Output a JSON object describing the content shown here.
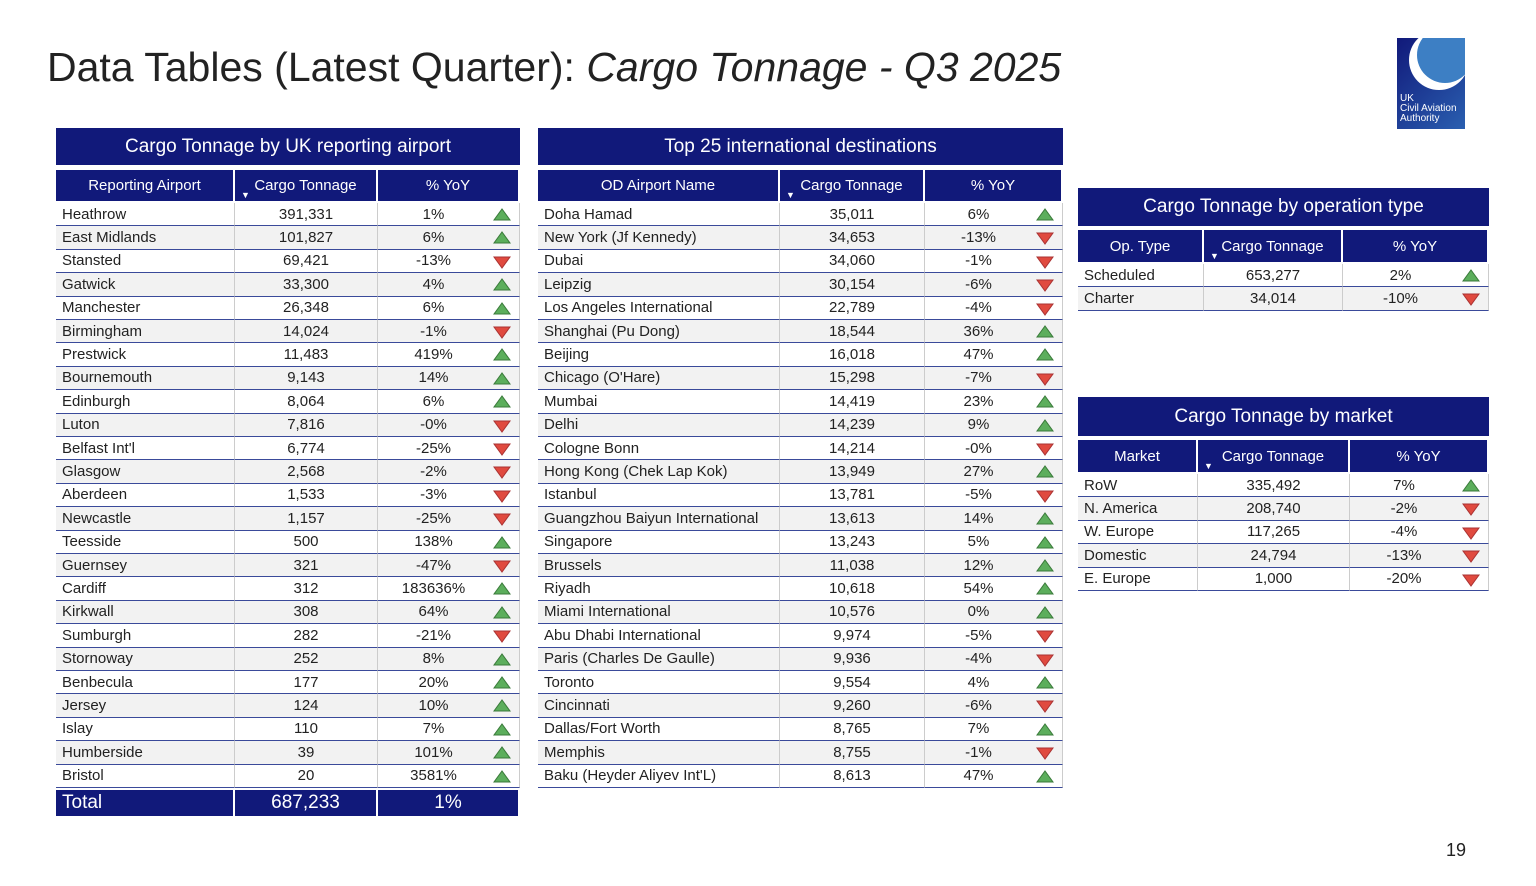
{
  "header": {
    "title": "Data Tables (Latest Quarter): ",
    "title_italic": "Cargo Tonnage - Q3 2025",
    "logo_text": [
      "UK",
      "Civil Aviation",
      "Authority"
    ]
  },
  "tables": [
    {
      "title": "Cargo Tonnage by UK reporting airport",
      "columns": [
        "Reporting Airport",
        "Cargo Tonnage",
        "% YoY"
      ],
      "rows": [
        [
          "Heathrow",
          "391,331",
          "1%"
        ],
        [
          "East Midlands",
          "101,827",
          "6%"
        ],
        [
          "Stansted",
          "69,421",
          "-13%"
        ],
        [
          "Gatwick",
          "33,300",
          "4%"
        ],
        [
          "Manchester",
          "26,348",
          "6%"
        ],
        [
          "Birmingham",
          "14,024",
          "-1%"
        ],
        [
          "Prestwick",
          "11,483",
          "419%"
        ],
        [
          "Bournemouth",
          "9,143",
          "14%"
        ],
        [
          "Edinburgh",
          "8,064",
          "6%"
        ],
        [
          "Luton",
          "7,816",
          "-0%"
        ],
        [
          "Belfast Int'l",
          "6,774",
          "-25%"
        ],
        [
          "Glasgow",
          "2,568",
          "-2%"
        ],
        [
          "Aberdeen",
          "1,533",
          "-3%"
        ],
        [
          "Newcastle",
          "1,157",
          "-25%"
        ],
        [
          "Teesside",
          "500",
          "138%"
        ],
        [
          "Guernsey",
          "321",
          "-47%"
        ],
        [
          "Cardiff",
          "312",
          "183636%"
        ],
        [
          "Kirkwall",
          "308",
          "64%"
        ],
        [
          "Sumburgh",
          "282",
          "-21%"
        ],
        [
          "Stornoway",
          "252",
          "8%"
        ],
        [
          "Benbecula",
          "177",
          "20%"
        ],
        [
          "Jersey",
          "124",
          "10%"
        ],
        [
          "Islay",
          "110",
          "7%"
        ],
        [
          "Humberside",
          "39",
          "101%"
        ],
        [
          "Bristol",
          "20",
          "3581%"
        ]
      ],
      "total": [
        "Total",
        "687,233",
        "1%"
      ]
    },
    {
      "title": "Top 25 international destinations",
      "columns": [
        "OD Airport Name",
        "Cargo Tonnage",
        "% YoY"
      ],
      "rows": [
        [
          "Doha Hamad",
          "35,011",
          "6%"
        ],
        [
          "New York (Jf Kennedy)",
          "34,653",
          "-13%"
        ],
        [
          "Dubai",
          "34,060",
          "-1%"
        ],
        [
          "Leipzig",
          "30,154",
          "-6%"
        ],
        [
          "Los Angeles International",
          "22,789",
          "-4%"
        ],
        [
          "Shanghai (Pu Dong)",
          "18,544",
          "36%"
        ],
        [
          "Beijing",
          "16,018",
          "47%"
        ],
        [
          "Chicago (O'Hare)",
          "15,298",
          "-7%"
        ],
        [
          "Mumbai",
          "14,419",
          "23%"
        ],
        [
          "Delhi",
          "14,239",
          "9%"
        ],
        [
          "Cologne Bonn",
          "14,214",
          "-0%"
        ],
        [
          "Hong Kong (Chek Lap Kok)",
          "13,949",
          "27%"
        ],
        [
          "Istanbul",
          "13,781",
          "-5%"
        ],
        [
          "Guangzhou Baiyun International",
          "13,613",
          "14%"
        ],
        [
          "Singapore",
          "13,243",
          "5%"
        ],
        [
          "Brussels",
          "11,038",
          "12%"
        ],
        [
          "Riyadh",
          "10,618",
          "54%"
        ],
        [
          "Miami International",
          "10,576",
          "0%"
        ],
        [
          "Abu Dhabi International",
          "9,974",
          "-5%"
        ],
        [
          "Paris (Charles De Gaulle)",
          "9,936",
          "-4%"
        ],
        [
          "Toronto",
          "9,554",
          "4%"
        ],
        [
          "Cincinnati",
          "9,260",
          "-6%"
        ],
        [
          "Dallas/Fort Worth",
          "8,765",
          "7%"
        ],
        [
          "Memphis",
          "8,755",
          "-1%"
        ],
        [
          "Baku (Heyder Aliyev Int'L)",
          "8,613",
          "47%"
        ]
      ]
    },
    {
      "title": "Cargo Tonnage by operation type",
      "columns": [
        "Op. Type",
        "Cargo Tonnage",
        "% YoY"
      ],
      "rows": [
        [
          "Scheduled",
          "653,277",
          "2%"
        ],
        [
          "Charter",
          "34,014",
          "-10%"
        ]
      ]
    },
    {
      "title": "Cargo Tonnage by market",
      "columns": [
        "Market",
        "Cargo Tonnage",
        "% YoY"
      ],
      "rows": [
        [
          "RoW",
          "335,492",
          "7%"
        ],
        [
          "N. America",
          "208,740",
          "-2%"
        ],
        [
          "W. Europe",
          "117,265",
          "-4%"
        ],
        [
          "Domestic",
          "24,794",
          "-13%"
        ],
        [
          "E. Europe",
          "1,000",
          "-20%"
        ]
      ]
    }
  ],
  "footer": {
    "page_number": "19"
  }
}
